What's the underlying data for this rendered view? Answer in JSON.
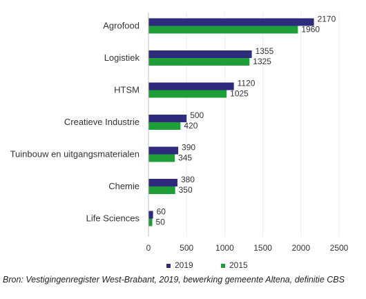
{
  "chart_data": {
    "type": "bar",
    "orientation": "horizontal",
    "categories": [
      "Agrofood",
      "Logistiek",
      "HTSM",
      "Creatieve Industrie",
      "Tuinbouw en uitgangsmaterialen",
      "Chemie",
      "Life Sciences"
    ],
    "series": [
      {
        "name": "2019",
        "color": "#2e2a7c",
        "values": [
          2170,
          1355,
          1120,
          500,
          390,
          380,
          60
        ]
      },
      {
        "name": "2015",
        "color": "#1e9e38",
        "values": [
          1960,
          1325,
          1025,
          420,
          345,
          350,
          50
        ]
      }
    ],
    "xlim": [
      0,
      2500
    ],
    "xticks": [
      0,
      500,
      1000,
      1500,
      2000,
      2500
    ],
    "grid": true,
    "legend_position": "bottom"
  },
  "source": "Bron: Vestigingenregister West-Brabant, 2019, bewerking gemeente Altena, definitie CBS"
}
